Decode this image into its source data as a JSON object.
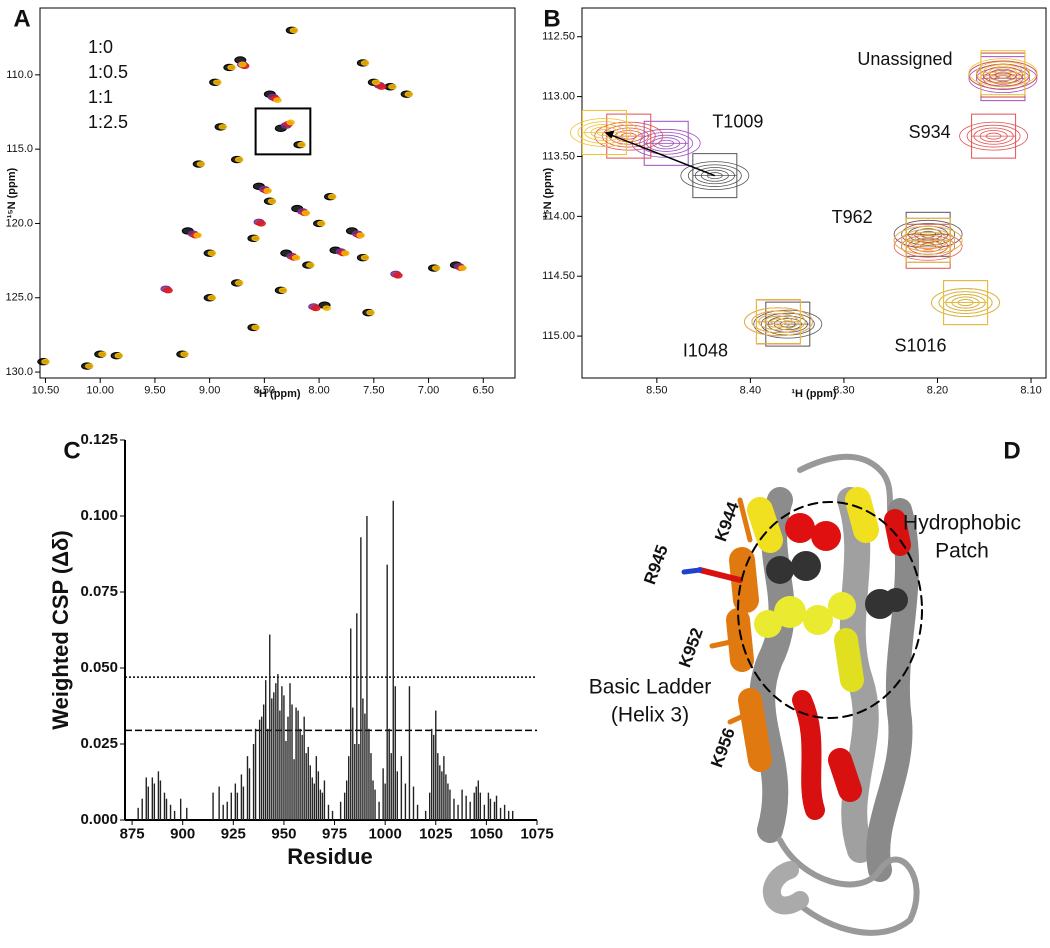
{
  "chart_data": [
    {
      "type": "scatter",
      "panel_label": "A",
      "marker": "ellipse",
      "legend": true,
      "frame": true,
      "xlabel": "¹H (ppm)",
      "ylabel": "¹⁵N (ppm)",
      "xlim": [
        10.55,
        6.21
      ],
      "ylim": [
        130.4,
        105.5
      ],
      "xticks": [
        {
          "value": 10.5,
          "label": "10.50"
        },
        {
          "value": 10,
          "label": "10.00"
        },
        {
          "value": 9.5,
          "label": "9.50"
        },
        {
          "value": 9,
          "label": "9.00"
        },
        {
          "value": 8.5,
          "label": "8.50"
        },
        {
          "value": 8,
          "label": "8.00"
        },
        {
          "value": 7.5,
          "label": "7.50"
        },
        {
          "value": 7,
          "label": "7.00"
        },
        {
          "value": 6.5,
          "label": "6.50"
        }
      ],
      "yticks": [
        {
          "value": 110,
          "label": "110.0"
        },
        {
          "value": 115,
          "label": "115.0"
        },
        {
          "value": 120,
          "label": "120.0"
        },
        {
          "value": 125,
          "label": "125.0"
        },
        {
          "value": 130,
          "label": "130.0"
        }
      ],
      "zoom_box": {
        "x": [
          8.58,
          8.08
        ],
        "y": [
          112.26,
          115.35
        ]
      },
      "series": [
        {
          "name": "1:0",
          "color": "#000000",
          "x": [
            10.52,
            10.12,
            10.0,
            9.85,
            9.25,
            8.82,
            8.72,
            8.95,
            8.45,
            8.25,
            7.5,
            7.35,
            7.2,
            7.6,
            8.9,
            9.1,
            8.75,
            8.35,
            8.18,
            8.55,
            8.45,
            8.2,
            8.0,
            7.9,
            7.7,
            8.6,
            8.3,
            8.1,
            7.85,
            7.6,
            9.0,
            9.2,
            8.75,
            8.35,
            7.95,
            7.55,
            6.75,
            6.95,
            9.0,
            8.6
          ],
          "y": [
            129.3,
            129.6,
            128.8,
            128.9,
            128.8,
            109.5,
            109.0,
            110.5,
            111.3,
            107.0,
            110.5,
            110.8,
            111.3,
            109.2,
            113.5,
            116.0,
            115.7,
            113.6,
            114.7,
            117.5,
            118.5,
            119.0,
            120.0,
            118.2,
            120.5,
            121.0,
            122.0,
            122.8,
            121.8,
            122.3,
            122.0,
            120.5,
            124.0,
            124.5,
            125.5,
            126.0,
            122.8,
            123.0,
            125.0,
            127.0
          ]
        },
        {
          "name": "1:0.5",
          "color": "#7b2d8e",
          "x": [
            8.42,
            8.3,
            8.7,
            7.45,
            8.5,
            8.15,
            7.65,
            8.25,
            9.15,
            7.8,
            8.05,
            9.4,
            7.3,
            8.55,
            6.72
          ],
          "y": [
            111.5,
            113.4,
            109.3,
            110.7,
            117.7,
            119.2,
            120.7,
            122.2,
            120.7,
            121.9,
            125.6,
            124.4,
            123.4,
            119.9,
            122.9
          ]
        },
        {
          "name": "1:1",
          "color": "#e01b1b",
          "x": [
            8.4,
            8.28,
            8.68,
            7.43,
            8.48,
            8.13,
            7.63,
            8.23,
            9.13,
            7.78,
            8.03,
            9.38,
            7.28,
            8.53,
            6.7
          ],
          "y": [
            111.6,
            113.3,
            109.4,
            110.8,
            117.8,
            119.3,
            120.8,
            122.3,
            120.8,
            122.0,
            125.7,
            124.5,
            123.5,
            120.0,
            123.0
          ]
        },
        {
          "name": "1:2.5",
          "color": "#f5b800",
          "x": [
            10.5,
            10.1,
            9.98,
            9.83,
            9.23,
            8.8,
            8.7,
            8.93,
            8.38,
            8.23,
            7.48,
            7.33,
            7.18,
            7.58,
            8.88,
            9.08,
            8.73,
            8.26,
            8.16,
            8.47,
            8.43,
            8.12,
            7.98,
            7.88,
            7.62,
            8.58,
            8.21,
            8.08,
            7.76,
            7.58,
            8.98,
            9.11,
            8.73,
            8.33,
            7.93,
            7.53,
            6.69,
            6.93,
            8.98,
            8.58
          ],
          "y": [
            129.3,
            129.6,
            128.8,
            128.9,
            128.8,
            109.5,
            109.3,
            110.5,
            111.7,
            107.0,
            110.5,
            110.8,
            111.3,
            109.2,
            113.5,
            116.0,
            115.7,
            113.2,
            114.7,
            117.8,
            118.5,
            119.3,
            120.0,
            118.2,
            120.8,
            121.0,
            122.3,
            122.8,
            122.0,
            122.3,
            122.0,
            120.8,
            124.0,
            124.5,
            125.7,
            126.0,
            123.0,
            123.0,
            125.0,
            127.0
          ]
        }
      ]
    },
    {
      "type": "scatter",
      "panel_label": "B",
      "marker": "contour",
      "legend": false,
      "frame": true,
      "xlabel": "¹H (ppm)",
      "ylabel": "¹⁵N (ppm)",
      "xlim": [
        8.58,
        8.084
      ],
      "ylim": [
        115.35,
        112.26
      ],
      "xticks": [
        {
          "value": 8.5,
          "label": "8.50"
        },
        {
          "value": 8.4,
          "label": "8.40"
        },
        {
          "value": 8.3,
          "label": "8.30"
        },
        {
          "value": 8.2,
          "label": "8.20"
        },
        {
          "value": 8.1,
          "label": "8.10"
        }
      ],
      "yticks": [
        {
          "value": 112.5,
          "label": "112.50"
        },
        {
          "value": 113,
          "label": "113.00"
        },
        {
          "value": 113.5,
          "label": "113.50"
        },
        {
          "value": 114,
          "label": "114.00"
        },
        {
          "value": 114.5,
          "label": "114.50"
        },
        {
          "value": 115,
          "label": "115.00"
        }
      ],
      "series": [
        {
          "name": "1:0",
          "color": "#555555",
          "x": [
            8.438,
            8.13,
            8.21,
            8.36,
            8.17
          ],
          "y": [
            113.66,
            112.82,
            114.15,
            114.9,
            114.72
          ]
        },
        {
          "name": "1:0.5",
          "color": "#9b4fc0",
          "x": [
            8.49,
            8.13,
            8.21,
            8.37
          ],
          "y": [
            113.39,
            112.85,
            114.2,
            114.88
          ]
        },
        {
          "name": "1:1",
          "color": "#e05050",
          "x": [
            8.53,
            8.13,
            8.14,
            8.21,
            8.37
          ],
          "y": [
            113.33,
            112.82,
            113.33,
            114.25,
            114.88
          ]
        },
        {
          "name": "1:2.5",
          "color": "#f0c030",
          "x": [
            8.556,
            8.13,
            8.21,
            8.37,
            8.17
          ],
          "y": [
            113.3,
            112.8,
            114.2,
            114.88,
            114.72
          ]
        }
      ],
      "annotations": [
        {
          "text": "T1009",
          "x": 8.438,
          "y": 113.66
        },
        {
          "text": "Unassigned",
          "x": 8.13,
          "y": 112.83
        },
        {
          "text": "S934",
          "x": 8.14,
          "y": 113.33
        },
        {
          "text": "T962",
          "x": 8.21,
          "y": 114.2
        },
        {
          "text": "I1048",
          "x": 8.37,
          "y": 114.88
        },
        {
          "text": "S1016",
          "x": 8.17,
          "y": 114.72
        }
      ]
    },
    {
      "type": "bar",
      "panel_label": "C",
      "legend": false,
      "frame": false,
      "color": "#222222",
      "xlabel": "Residue",
      "ylabel": "Weighted CSP (Δδ)",
      "xlim": [
        871.5,
        1075
      ],
      "ylim": [
        0,
        0.125
      ],
      "xticks": [
        875,
        900,
        925,
        950,
        975,
        1000,
        1025,
        1050,
        1075
      ],
      "yticks": [
        {
          "value": 0,
          "label": "0.000"
        },
        {
          "value": 0.025,
          "label": "0.025"
        },
        {
          "value": 0.05,
          "label": "0.050"
        },
        {
          "value": 0.075,
          "label": "0.075"
        },
        {
          "value": 0.1,
          "label": "0.100"
        },
        {
          "value": 0.125,
          "label": "0.125"
        }
      ],
      "threshold_lines": [
        {
          "value": 0.047,
          "style": "dotted"
        },
        {
          "value": 0.0295,
          "style": "dashed"
        }
      ],
      "x": [
        878,
        880,
        882,
        883,
        885,
        886,
        888,
        889,
        891,
        892,
        894,
        896,
        899,
        902,
        915,
        918,
        920,
        922,
        924,
        926,
        927,
        929,
        930,
        932,
        933,
        935,
        936,
        938,
        939,
        940,
        941,
        942,
        943,
        944,
        945,
        946,
        947,
        948,
        949,
        950,
        951,
        952,
        953,
        954,
        955,
        956,
        957,
        958,
        959,
        960,
        961,
        962,
        963,
        964,
        965,
        966,
        967,
        968,
        969,
        970,
        972,
        974,
        978,
        980,
        981,
        982,
        983,
        984,
        985,
        986,
        987,
        988,
        989,
        990,
        991,
        992,
        993,
        994,
        995,
        997,
        999,
        1000,
        1001,
        1002,
        1003,
        1004,
        1005,
        1006,
        1008,
        1010,
        1012,
        1014,
        1016,
        1020,
        1022,
        1023,
        1024,
        1025,
        1026,
        1027,
        1028,
        1029,
        1030,
        1031,
        1032,
        1034,
        1036,
        1038,
        1040,
        1042,
        1044,
        1045,
        1046,
        1047,
        1049,
        1051,
        1052,
        1054,
        1055,
        1057,
        1059,
        1061,
        1063
      ],
      "values": [
        0.004,
        0.007,
        0.014,
        0.011,
        0.014,
        0.012,
        0.016,
        0.013,
        0.009,
        0.007,
        0.005,
        0.003,
        0.007,
        0.004,
        0.009,
        0.011,
        0.005,
        0.006,
        0.009,
        0.012,
        0.009,
        0.015,
        0.011,
        0.021,
        0.017,
        0.025,
        0.03,
        0.033,
        0.034,
        0.038,
        0.046,
        0.03,
        0.061,
        0.04,
        0.042,
        0.045,
        0.048,
        0.036,
        0.044,
        0.041,
        0.026,
        0.034,
        0.045,
        0.038,
        0.02,
        0.037,
        0.036,
        0.03,
        0.028,
        0.034,
        0.022,
        0.024,
        0.018,
        0.014,
        0.012,
        0.021,
        0.016,
        0.01,
        0.009,
        0.013,
        0.005,
        0.003,
        0.006,
        0.009,
        0.013,
        0.021,
        0.063,
        0.037,
        0.025,
        0.068,
        0.025,
        0.093,
        0.04,
        0.035,
        0.1,
        0.03,
        0.022,
        0.013,
        0.01,
        0.006,
        0.017,
        0.012,
        0.084,
        0.03,
        0.022,
        0.105,
        0.044,
        0.016,
        0.021,
        0.012,
        0.044,
        0.011,
        0.005,
        0.003,
        0.009,
        0.03,
        0.028,
        0.036,
        0.022,
        0.018,
        0.016,
        0.021,
        0.015,
        0.012,
        0.01,
        0.007,
        0.005,
        0.01,
        0.008,
        0.006,
        0.009,
        0.011,
        0.013,
        0.009,
        0.005,
        0.009,
        0.007,
        0.006,
        0.008,
        0.004,
        0.005,
        0.003,
        0.003
      ]
    }
  ],
  "structure": {
    "panel_label": "D",
    "labels": [
      "K944",
      "R945",
      "K952",
      "K956",
      "Hydrophobic",
      "Patch",
      "Basic Ladder",
      "(Helix 3)"
    ]
  }
}
